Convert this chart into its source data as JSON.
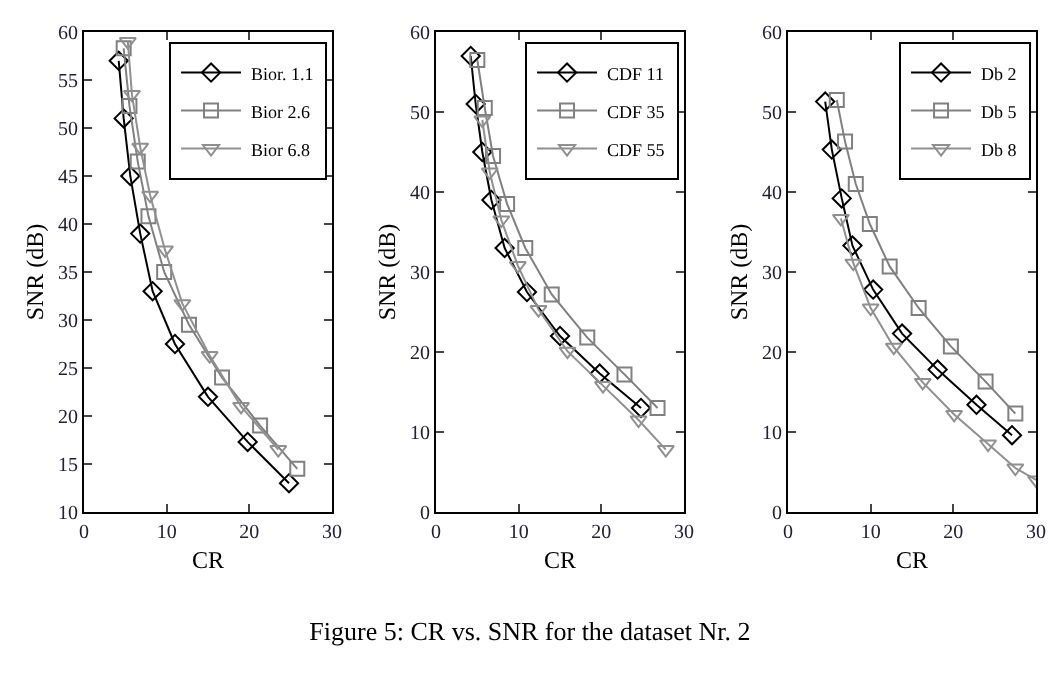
{
  "chart_data": [
    {
      "type": "line",
      "xlabel": "CR",
      "ylabel": "SNR (dB)",
      "xlim": [
        0,
        30
      ],
      "xticks": [
        0,
        10,
        20,
        30
      ],
      "ylim": [
        10,
        60
      ],
      "yticks": [
        10,
        15,
        20,
        25,
        30,
        35,
        40,
        45,
        50,
        55,
        60
      ],
      "grid": false,
      "legend": "top right",
      "line_style": "solid",
      "series": [
        {
          "name": "Bior. 1.1",
          "color": "#000000",
          "marker": "diamond",
          "x": [
            4.2,
            4.8,
            5.6,
            6.8,
            8.3,
            11,
            15,
            19.8,
            24.8
          ],
          "values": [
            57,
            51,
            45,
            39,
            33,
            27.5,
            22,
            17.3,
            13
          ]
        },
        {
          "name": "Bior 2.6",
          "color": "#808080",
          "marker": "square",
          "x": [
            4.8,
            5.5,
            6.5,
            7.8,
            9.7,
            12.7,
            16.7,
            21.3,
            25.8
          ],
          "values": [
            58.3,
            52.3,
            46.5,
            40.8,
            35,
            29.5,
            24,
            19,
            14.5
          ]
        },
        {
          "name": "Bior 6.8",
          "color": "#909090",
          "marker": "triangle",
          "x": [
            5.3,
            5.8,
            6.8,
            8,
            9.8,
            11.9,
            15.2,
            19,
            23.5
          ],
          "values": [
            59,
            53.5,
            48,
            43,
            37.3,
            31.7,
            26.3,
            21,
            16.5
          ]
        }
      ]
    },
    {
      "type": "line",
      "xlabel": "CR",
      "ylabel": "SNR (dB)",
      "xlim": [
        0,
        30
      ],
      "xticks": [
        0,
        10,
        20,
        30
      ],
      "ylim": [
        0,
        60
      ],
      "yticks": [
        0,
        10,
        20,
        30,
        40,
        50,
        60
      ],
      "grid": false,
      "legend": "top right",
      "line_style": "solid",
      "series": [
        {
          "name": "CDF 11",
          "color": "#000000",
          "marker": "diamond",
          "x": [
            4.2,
            4.8,
            5.6,
            6.7,
            8.3,
            11,
            15,
            19.8,
            24.8
          ],
          "values": [
            57,
            51,
            45,
            39,
            33,
            27.5,
            22,
            17.3,
            13
          ]
        },
        {
          "name": "CDF 35",
          "color": "#808080",
          "marker": "square",
          "x": [
            5,
            5.9,
            6.9,
            8.6,
            10.8,
            14,
            18.3,
            22.8,
            26.8
          ],
          "values": [
            56.5,
            50.5,
            44.5,
            38.5,
            33,
            27.2,
            21.8,
            17.2,
            13
          ]
        },
        {
          "name": "CDF 55",
          "color": "#909090",
          "marker": "triangle",
          "x": [
            5.6,
            6.5,
            7.9,
            9.9,
            12.4,
            15.9,
            20.2,
            24.5,
            27.8
          ],
          "values": [
            49,
            42.5,
            36.5,
            30.8,
            25.3,
            20.1,
            15.8,
            11.5,
            7.8
          ]
        }
      ]
    },
    {
      "type": "line",
      "xlabel": "CR",
      "ylabel": "SNR (dB)",
      "xlim": [
        0,
        30
      ],
      "xticks": [
        0,
        10,
        20,
        30
      ],
      "ylim": [
        0,
        60
      ],
      "yticks": [
        0,
        10,
        20,
        30,
        40,
        50,
        60
      ],
      "grid": false,
      "legend": "top right",
      "line_style": "solid",
      "annotations": [
        "Figure 5: CR vs. SNR for the dataset Nr. 2"
      ],
      "series": [
        {
          "name": "Db 2",
          "color": "#000000",
          "marker": "diamond",
          "x": [
            4.5,
            5.3,
            6.5,
            7.8,
            10.3,
            13.8,
            18.1,
            22.8,
            27.1
          ],
          "values": [
            51.3,
            45.3,
            39.2,
            33.3,
            27.8,
            22.3,
            17.8,
            13.4,
            9.6
          ]
        },
        {
          "name": "Db 5",
          "color": "#808080",
          "marker": "square",
          "x": [
            5.9,
            6.9,
            8.2,
            9.9,
            12.3,
            15.8,
            19.7,
            23.9,
            27.5
          ],
          "values": [
            51.5,
            46.3,
            41,
            36,
            30.7,
            25.5,
            20.7,
            16.3,
            12.3
          ]
        },
        {
          "name": "Db 8",
          "color": "#909090",
          "marker": "triangle",
          "x": [
            6.4,
            7.9,
            10,
            12.8,
            16.3,
            20.1,
            24.2,
            27.5,
            30
          ],
          "values": [
            36.7,
            31.1,
            25.5,
            20.6,
            16.2,
            12.2,
            8.5,
            5.5,
            4
          ]
        }
      ]
    }
  ]
}
